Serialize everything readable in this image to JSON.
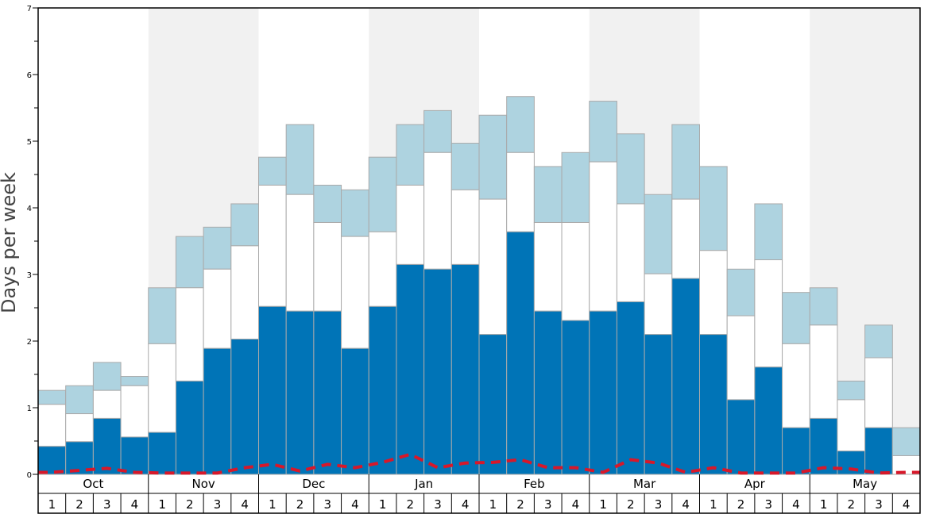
{
  "chart_data": {
    "type": "bar",
    "title": "",
    "xlabel": "",
    "ylabel": "Days per week",
    "ylim": [
      0,
      7
    ],
    "yticks": [
      "0",
      "1",
      "2",
      "3",
      "4",
      "5",
      "6",
      "7"
    ],
    "grid": false,
    "legend": "none",
    "months": [
      "Oct",
      "Nov",
      "Dec",
      "Jan",
      "Feb",
      "Mar",
      "Apr",
      "May"
    ],
    "weeks": [
      "1",
      "2",
      "3",
      "4"
    ],
    "colors": {
      "bottom": "#0074b7",
      "middle": "#ffffff",
      "top": "#aed3e0",
      "line": "#d7182a",
      "band": "#f1f1f1",
      "border": "#aaaaaa"
    },
    "series": [
      {
        "values": [
          0.42,
          0.49,
          0.84,
          0.56,
          0.63,
          1.4,
          1.89,
          2.03,
          2.52,
          2.45,
          2.45,
          1.89,
          2.52,
          3.15,
          3.08,
          3.15,
          2.1,
          3.64,
          2.45,
          2.31,
          2.45,
          2.59,
          2.1,
          2.94,
          2.1,
          1.12,
          1.61,
          0.7,
          0.84,
          0.35,
          0.7,
          0.0
        ]
      },
      {
        "values": [
          1.05,
          0.91,
          1.26,
          1.33,
          1.96,
          2.8,
          3.08,
          3.43,
          4.34,
          4.2,
          3.78,
          3.57,
          3.64,
          4.34,
          4.83,
          4.27,
          4.13,
          4.83,
          3.78,
          3.78,
          4.69,
          4.06,
          3.01,
          4.13,
          3.36,
          2.38,
          3.22,
          1.96,
          2.24,
          1.12,
          1.75,
          0.28
        ]
      },
      {
        "values": [
          1.26,
          1.33,
          1.68,
          1.47,
          2.8,
          3.57,
          3.71,
          4.06,
          4.76,
          5.25,
          4.34,
          4.27,
          4.76,
          5.25,
          5.46,
          4.97,
          5.39,
          5.67,
          4.62,
          4.83,
          5.6,
          5.11,
          4.2,
          5.25,
          4.62,
          3.08,
          4.06,
          2.73,
          2.8,
          1.4,
          2.24,
          0.7
        ]
      },
      {
        "values": [
          0.03,
          0.06,
          0.09,
          0.03,
          0.02,
          0.02,
          0.02,
          0.1,
          0.15,
          0.05,
          0.15,
          0.1,
          0.18,
          0.3,
          0.1,
          0.17,
          0.18,
          0.22,
          0.1,
          0.1,
          0.03,
          0.22,
          0.17,
          0.03,
          0.1,
          0.02,
          0.02,
          0.02,
          0.1,
          0.08,
          0.02,
          0.03
        ]
      }
    ]
  }
}
